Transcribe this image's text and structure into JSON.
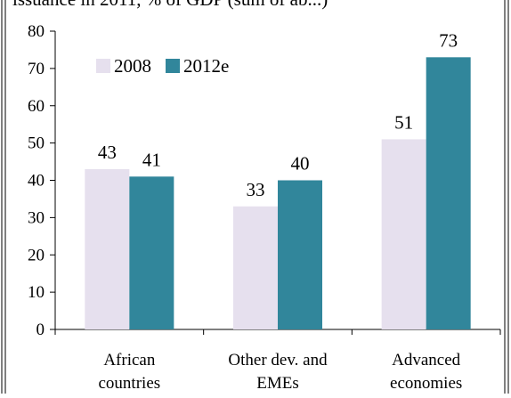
{
  "header_text": "issuance in 2011, % of GDP (sum of ab...)",
  "chart_data": {
    "type": "bar",
    "categories": [
      [
        "African",
        "countries"
      ],
      [
        "Other dev. and",
        "EMEs"
      ],
      [
        "Advanced",
        "economies"
      ]
    ],
    "series": [
      {
        "name": "2008",
        "values": [
          43,
          33,
          51
        ],
        "labels": [
          "43",
          "33",
          "51"
        ],
        "color": "#e6e0ee"
      },
      {
        "name": "2012e",
        "values": [
          41,
          40,
          73
        ],
        "labels": [
          "41",
          "40",
          "73"
        ],
        "color": "#31869b"
      }
    ],
    "ylim": [
      0,
      80
    ],
    "yticks": [
      "0",
      "10",
      "20",
      "30",
      "40",
      "50",
      "60",
      "70",
      "80"
    ],
    "legend_position": "top-left",
    "grid": false
  }
}
